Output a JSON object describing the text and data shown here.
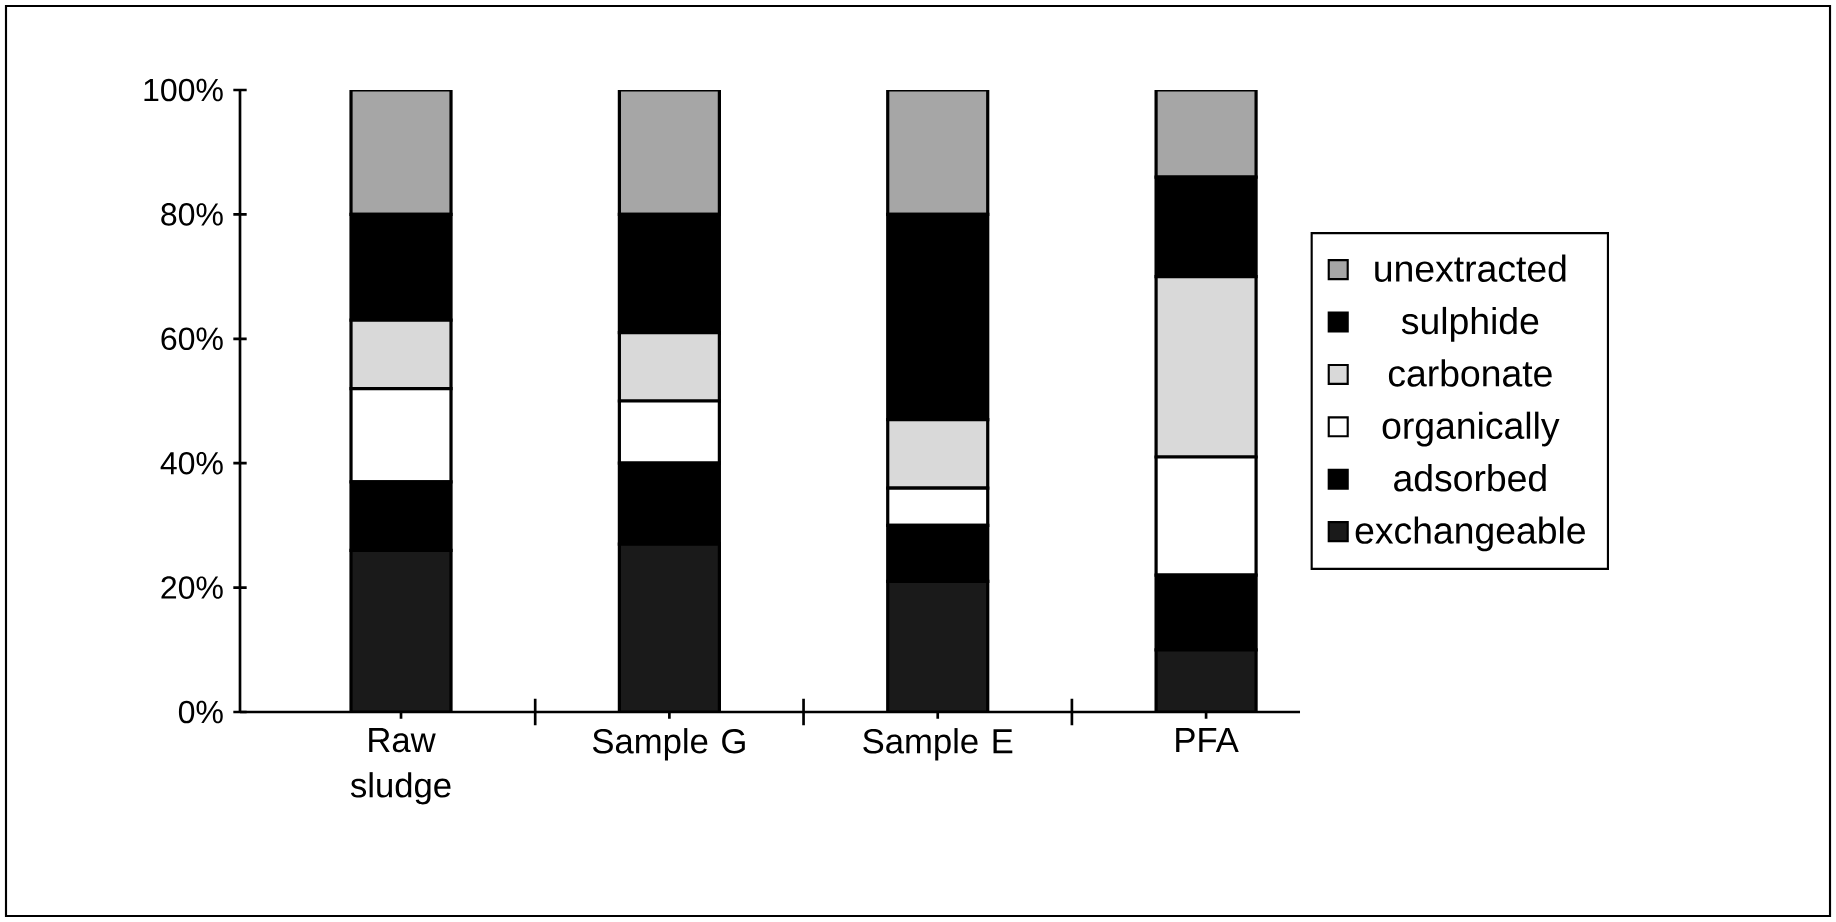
{
  "chart_data": {
    "type": "bar",
    "stacked": true,
    "categories": [
      "Raw sludge",
      "Sample G",
      "Sample E",
      "PFA"
    ],
    "series": [
      {
        "name": "exchangeable",
        "color": "#1a1a1a",
        "values": [
          26,
          27,
          21,
          10
        ]
      },
      {
        "name": "adsorbed",
        "color": "#000000",
        "values": [
          11,
          13,
          9,
          12
        ]
      },
      {
        "name": "organically",
        "color": "#ffffff",
        "values": [
          15,
          10,
          6,
          19
        ]
      },
      {
        "name": "carbonate",
        "color": "#d9d9d9",
        "values": [
          11,
          11,
          11,
          29
        ]
      },
      {
        "name": "sulphide",
        "color": "#000000",
        "values": [
          17,
          19,
          33,
          16
        ]
      },
      {
        "name": "unextracted",
        "color": "#a6a6a6",
        "values": [
          20,
          20,
          20,
          14
        ]
      }
    ],
    "ylim": [
      0,
      100
    ],
    "yticks": [
      {
        "value": 0,
        "label": "0%"
      },
      {
        "value": 20,
        "label": "20%"
      },
      {
        "value": 40,
        "label": "40%"
      },
      {
        "value": 60,
        "label": "60%"
      },
      {
        "value": 80,
        "label": "80%"
      },
      {
        "value": 100,
        "label": "100%"
      }
    ],
    "grid": false,
    "legend": "right"
  }
}
